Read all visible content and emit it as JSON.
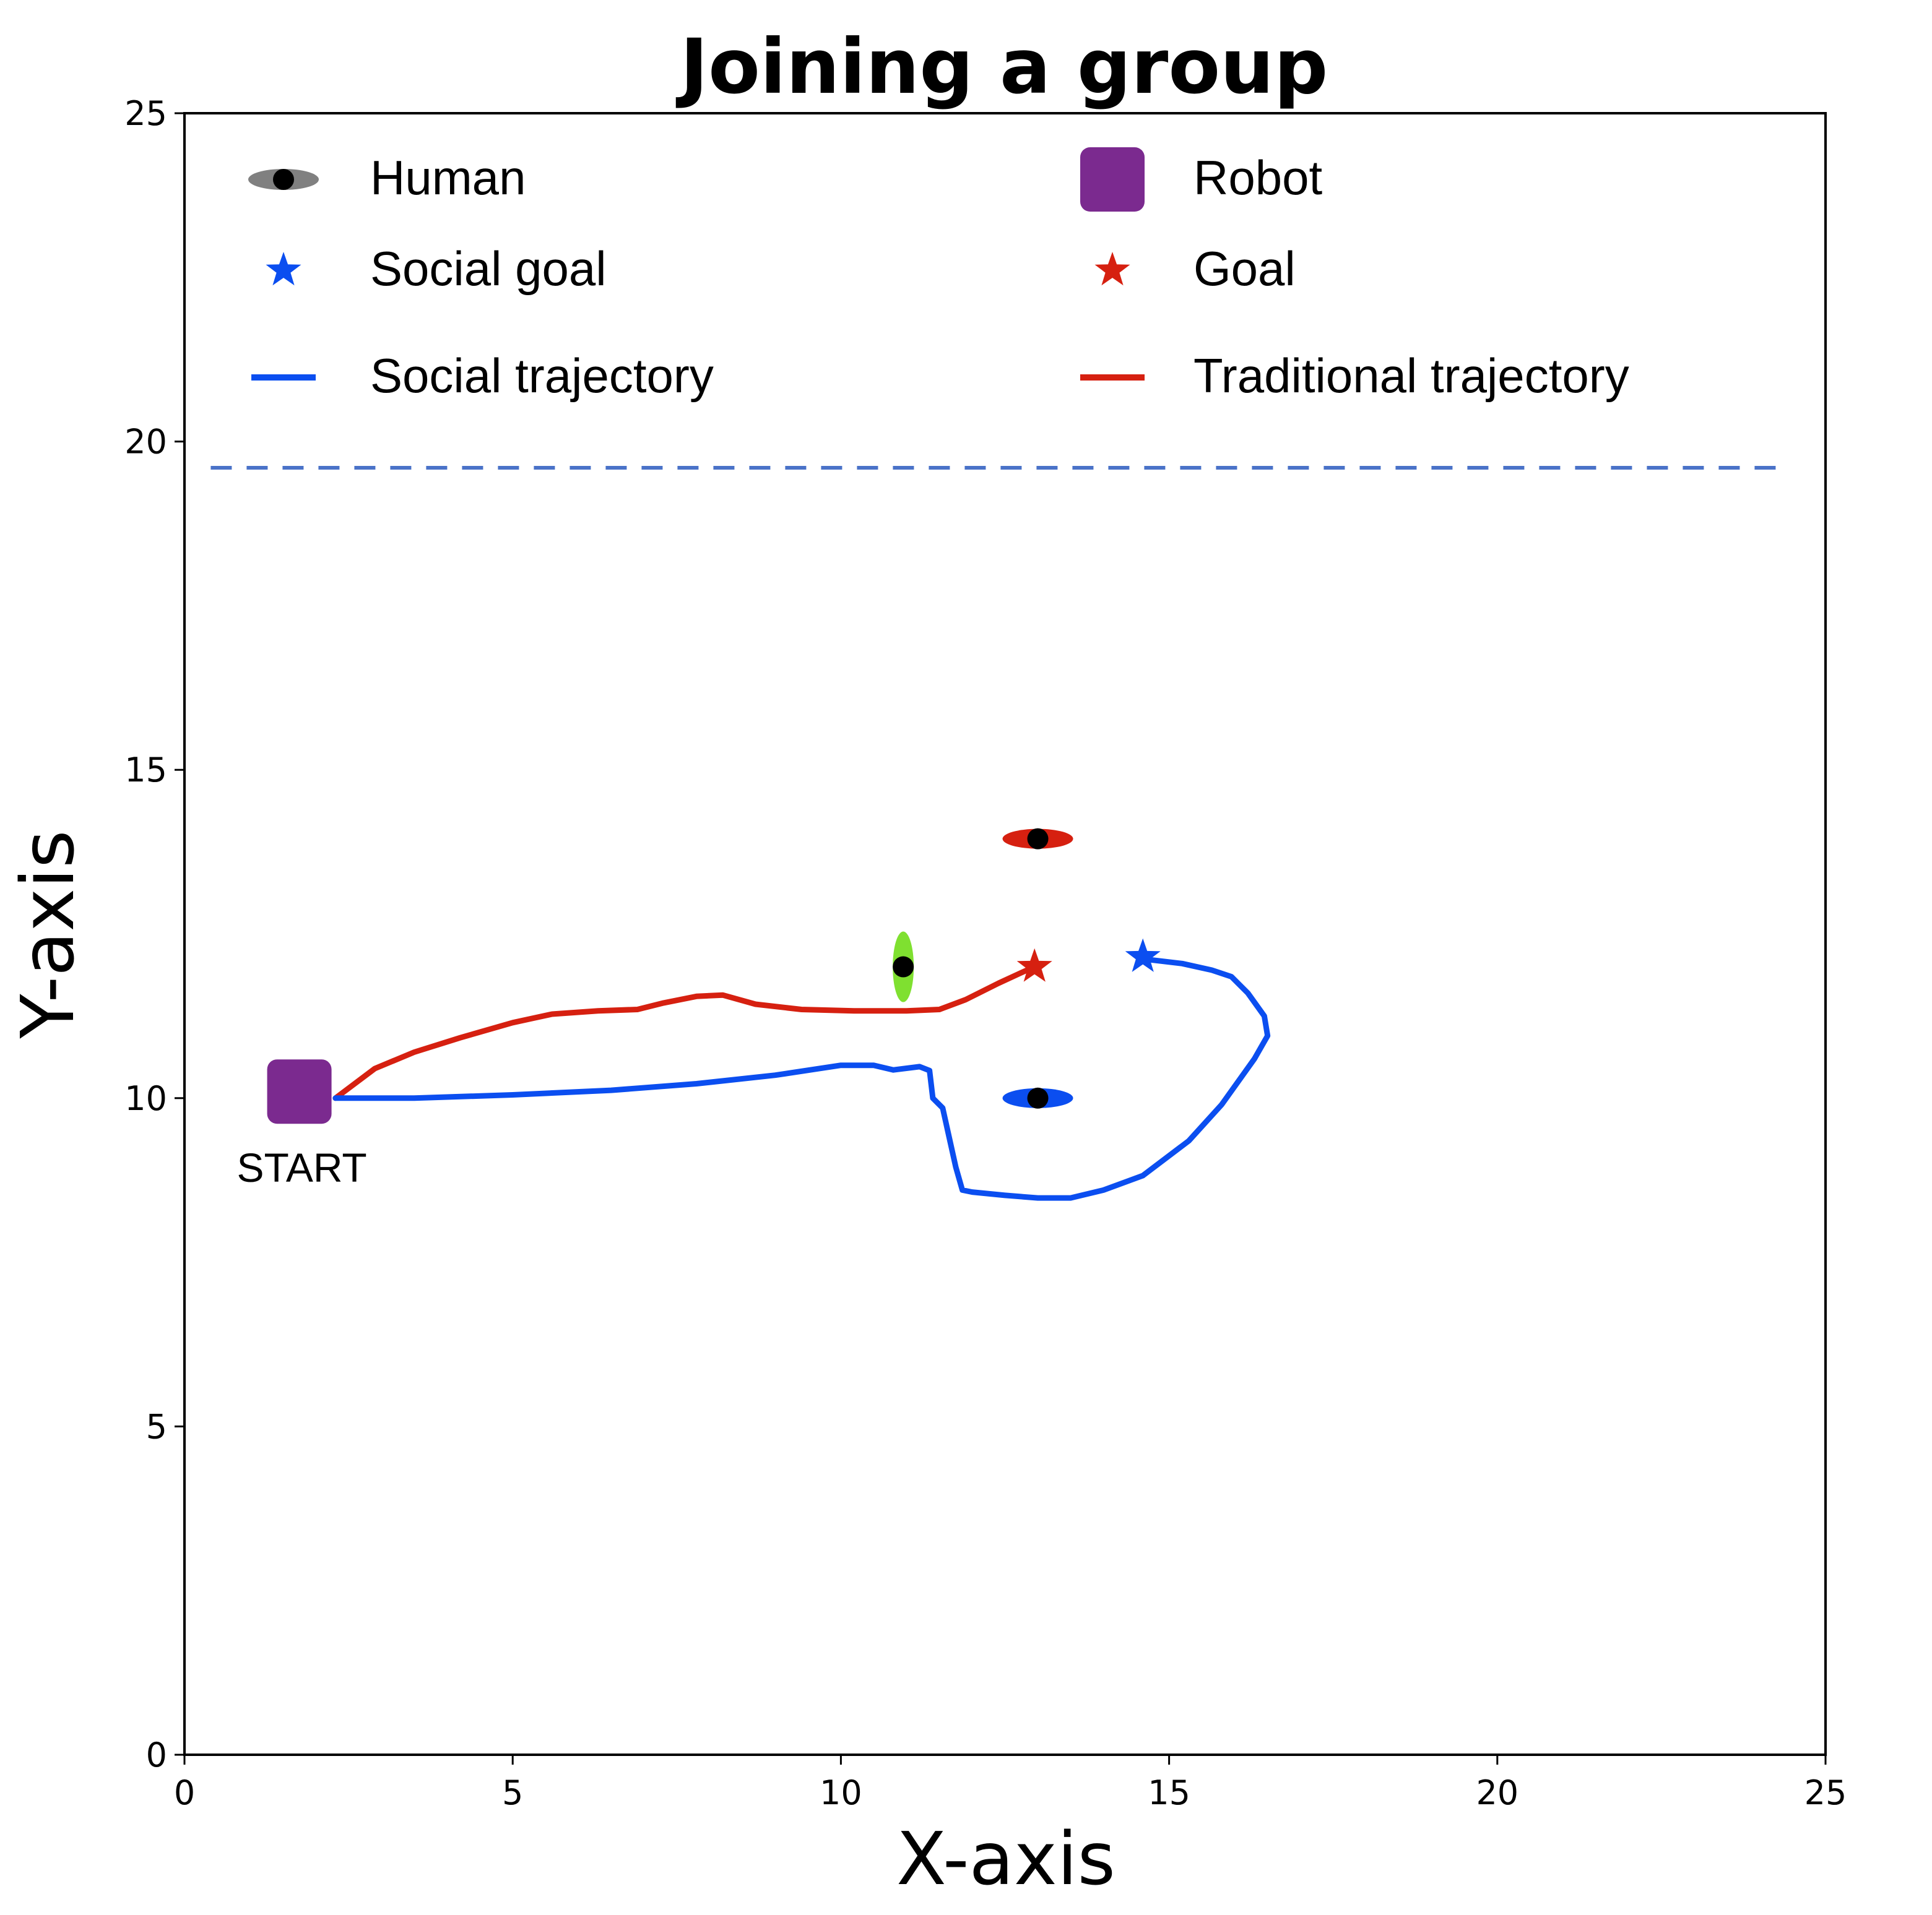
{
  "chart_data": {
    "type": "scatter",
    "title": "Joining a group",
    "xlabel": "X-axis",
    "ylabel": "Y-axis",
    "xlim": [
      0,
      25
    ],
    "ylim": [
      0,
      25
    ],
    "xticks": [
      0,
      5,
      10,
      15,
      20,
      25
    ],
    "yticks": [
      0,
      5,
      10,
      15,
      20,
      25
    ],
    "xtick_labels": [
      "0",
      "5",
      "10",
      "15",
      "20",
      "25"
    ],
    "ytick_labels": [
      "0",
      "5",
      "10",
      "15",
      "20",
      "25"
    ],
    "grid": false,
    "legend_placement": "top, two columns",
    "legend": [
      {
        "label": "Human",
        "marker": "ellipse-with-dot",
        "color": "#808080"
      },
      {
        "label": "Robot",
        "marker": "rounded-square",
        "color": "#7B2A8F"
      },
      {
        "label": "Social goal",
        "marker": "star",
        "color": "#0B4EF0"
      },
      {
        "label": "Goal",
        "marker": "star",
        "color": "#D62010"
      },
      {
        "label": "Social trajectory",
        "marker": "line",
        "color": "#0B4EF0"
      },
      {
        "label": "Traditional trajectory",
        "marker": "line",
        "color": "#D62010"
      }
    ],
    "boundary_line": {
      "y": 19.6,
      "x_range": [
        0.4,
        24.4
      ],
      "style": "dashed",
      "color": "#4A72C8"
    },
    "robot": {
      "x": 1.75,
      "y": 10.1,
      "color": "#7B2A8F",
      "annotation": "START"
    },
    "humans": [
      {
        "x": 13.0,
        "y": 13.95,
        "orientation": "horizontal",
        "color": "#D62010"
      },
      {
        "x": 13.0,
        "y": 10.0,
        "orientation": "horizontal",
        "color": "#0B4EF0"
      },
      {
        "x": 10.95,
        "y": 12.0,
        "orientation": "vertical",
        "color": "#7FE030"
      }
    ],
    "goal": {
      "x": 12.95,
      "y": 12.0,
      "color": "#D62010"
    },
    "social_goal": {
      "x": 14.6,
      "y": 12.15,
      "color": "#0B4EF0"
    },
    "series": [
      {
        "name": "Traditional trajectory",
        "color": "#D62010",
        "x": [
          2.3,
          2.9,
          3.5,
          4.2,
          5.0,
          5.6,
          6.3,
          6.9,
          7.3,
          7.8,
          8.2,
          8.7,
          9.4,
          10.2,
          11.0,
          11.5,
          11.9,
          12.4,
          12.9
        ],
        "y": [
          10.0,
          10.45,
          10.7,
          10.92,
          11.15,
          11.28,
          11.33,
          11.35,
          11.45,
          11.55,
          11.57,
          11.43,
          11.35,
          11.33,
          11.33,
          11.35,
          11.5,
          11.75,
          11.98
        ]
      },
      {
        "name": "Social trajectory",
        "color": "#0B4EF0",
        "x": [
          2.3,
          3.5,
          5.0,
          6.5,
          7.8,
          9.0,
          10.0,
          10.5,
          10.8,
          11.2,
          11.35,
          11.4,
          11.55,
          11.65,
          11.75,
          11.85,
          12.0,
          12.5,
          13.0,
          13.5,
          14.0,
          14.6,
          15.3,
          15.8,
          16.3,
          16.5,
          16.45,
          16.2,
          15.95,
          15.65,
          15.2,
          14.6
        ],
        "y": [
          10.0,
          10.0,
          10.05,
          10.12,
          10.22,
          10.35,
          10.5,
          10.5,
          10.43,
          10.48,
          10.42,
          10.0,
          9.85,
          9.4,
          8.95,
          8.6,
          8.57,
          8.52,
          8.48,
          8.48,
          8.6,
          8.82,
          9.35,
          9.9,
          10.6,
          10.95,
          11.25,
          11.6,
          11.85,
          11.95,
          12.05,
          12.12
        ]
      }
    ]
  }
}
